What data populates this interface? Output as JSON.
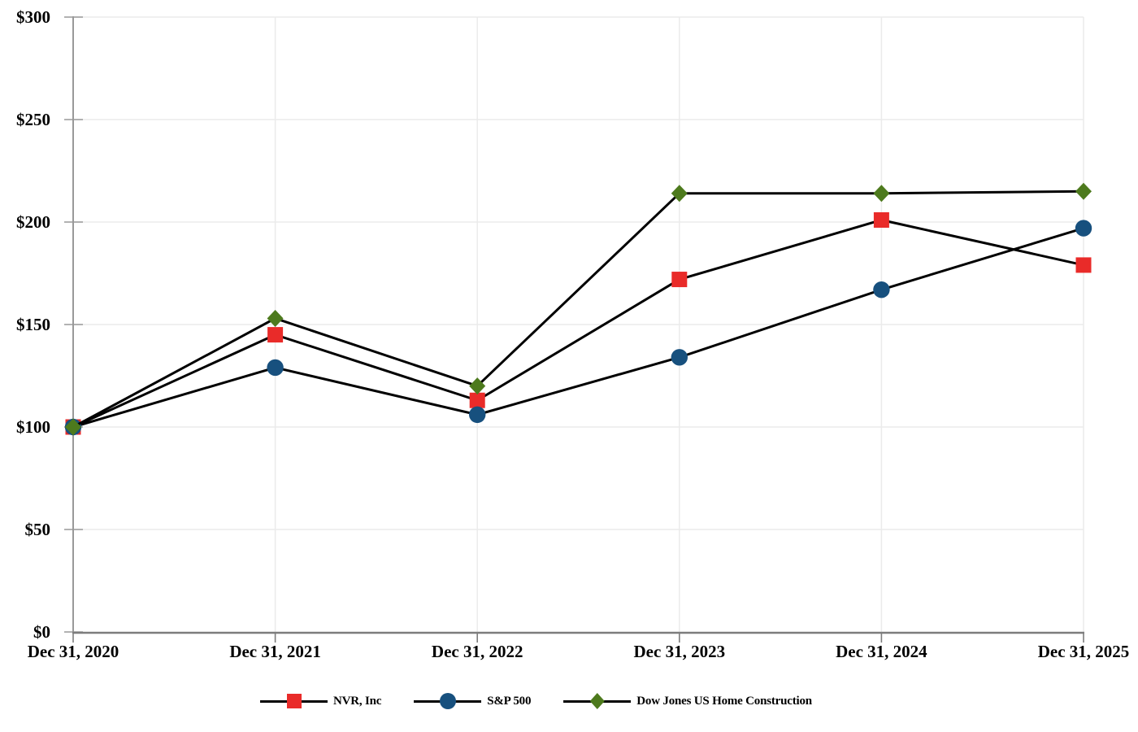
{
  "page": {
    "background": "#ffffff"
  },
  "chart_data": {
    "type": "line",
    "title": "",
    "x_categories": [
      "Dec 31, 2020",
      "Dec 31, 2021",
      "Dec 31, 2022",
      "Dec 31, 2023",
      "Dec 31, 2024",
      "Dec 31, 2025"
    ],
    "y_axis": {
      "min": 0,
      "max": 300,
      "tick_step": 50,
      "tick_values": [
        0,
        50,
        100,
        150,
        200,
        250,
        300
      ],
      "tick_labels": [
        "$0",
        "$50",
        "$100",
        "$150",
        "$200",
        "$250",
        "$300"
      ]
    },
    "series": [
      {
        "name": "NVR, Inc",
        "marker": "square",
        "color": "#e92b29",
        "values": [
          100,
          145,
          113,
          172,
          201,
          179
        ]
      },
      {
        "name": "S&P 500",
        "marker": "circle",
        "color": "#17507e",
        "values": [
          100,
          129,
          106,
          134,
          167,
          197
        ]
      },
      {
        "name": "Dow Jones US Home Construction",
        "marker": "diamond",
        "color": "#4d7a1d",
        "values": [
          100,
          153,
          120,
          214,
          214,
          215
        ]
      }
    ],
    "styles": {
      "line_color": "#000000",
      "grid_color": "#ebebeb",
      "axis_color": "#7d7d7d",
      "tick_color": "#999999",
      "text_color": "#000000"
    },
    "legend_position": "bottom",
    "grid": "on"
  }
}
